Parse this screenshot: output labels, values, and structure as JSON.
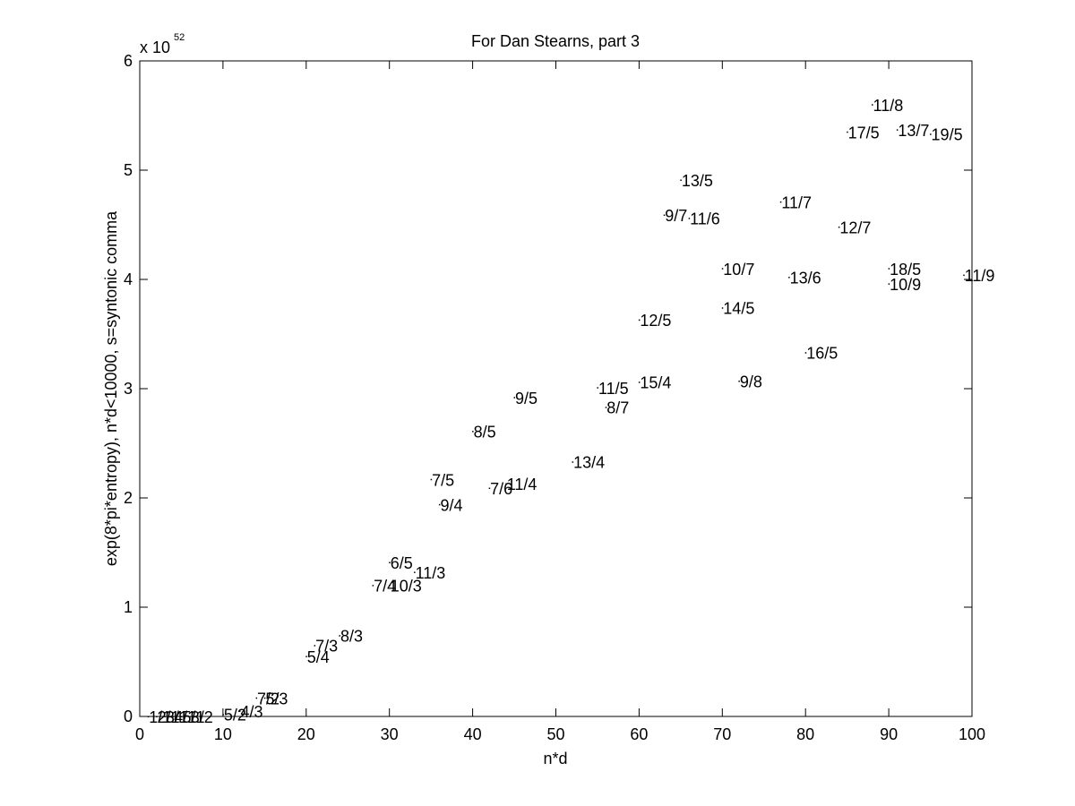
{
  "chart_data": {
    "type": "scatter",
    "title": "For Dan Stearns, part 3",
    "xlabel": "n*d",
    "ylabel": "exp(8*pi*entropy), n*d<10000, s=syntonic comma",
    "exponent_label": "x 10",
    "exponent_power": "52",
    "xlim": [
      0,
      100
    ],
    "ylim": [
      0,
      6
    ],
    "xticks": [
      0,
      10,
      20,
      30,
      40,
      50,
      60,
      70,
      80,
      90,
      100
    ],
    "yticks": [
      0,
      1,
      2,
      3,
      4,
      5,
      6
    ],
    "grid": false,
    "marker": "text-labels",
    "points": [
      {
        "label": "1/1",
        "x": 1,
        "y": 0
      },
      {
        "label": "2/1",
        "x": 2,
        "y": 0
      },
      {
        "label": "3/1",
        "x": 3,
        "y": 0
      },
      {
        "label": "4/1",
        "x": 4,
        "y": 0
      },
      {
        "label": "5/1",
        "x": 5,
        "y": 0
      },
      {
        "label": "3/2",
        "x": 6,
        "y": 0
      },
      {
        "label": "5/2",
        "x": 10,
        "y": 0.02
      },
      {
        "label": "4/3",
        "x": 12,
        "y": 0.05
      },
      {
        "label": "7/2",
        "x": 14,
        "y": 0.17
      },
      {
        "label": "5/3",
        "x": 15,
        "y": 0.17
      },
      {
        "label": "5/4",
        "x": 20,
        "y": 0.55
      },
      {
        "label": "7/3",
        "x": 21,
        "y": 0.65
      },
      {
        "label": "8/3",
        "x": 24,
        "y": 0.74
      },
      {
        "label": "7/4",
        "x": 28,
        "y": 1.2
      },
      {
        "label": "10/3",
        "x": 30,
        "y": 1.2
      },
      {
        "label": "6/5",
        "x": 30,
        "y": 1.41
      },
      {
        "label": "11/3",
        "x": 33,
        "y": 1.32
      },
      {
        "label": "7/5",
        "x": 35,
        "y": 2.17
      },
      {
        "label": "9/4",
        "x": 36,
        "y": 1.94
      },
      {
        "label": "8/5",
        "x": 40,
        "y": 2.61
      },
      {
        "label": "7/6",
        "x": 42,
        "y": 2.09
      },
      {
        "label": "11/4",
        "x": 44,
        "y": 2.13
      },
      {
        "label": "9/5",
        "x": 45,
        "y": 2.92
      },
      {
        "label": "13/4",
        "x": 52,
        "y": 2.33
      },
      {
        "label": "11/5",
        "x": 55,
        "y": 3.01
      },
      {
        "label": "8/7",
        "x": 56,
        "y": 2.83
      },
      {
        "label": "15/4",
        "x": 60,
        "y": 3.06
      },
      {
        "label": "12/5",
        "x": 60,
        "y": 3.63
      },
      {
        "label": "9/7",
        "x": 63,
        "y": 4.59
      },
      {
        "label": "13/5",
        "x": 65,
        "y": 4.91
      },
      {
        "label": "11/6",
        "x": 66,
        "y": 4.56
      },
      {
        "label": "10/7",
        "x": 70,
        "y": 4.1
      },
      {
        "label": "14/5",
        "x": 70,
        "y": 3.74
      },
      {
        "label": "9/8",
        "x": 72,
        "y": 3.07
      },
      {
        "label": "11/7",
        "x": 77,
        "y": 4.71
      },
      {
        "label": "13/6",
        "x": 78,
        "y": 4.02
      },
      {
        "label": "16/5",
        "x": 80,
        "y": 3.33
      },
      {
        "label": "12/7",
        "x": 84,
        "y": 4.48
      },
      {
        "label": "17/5",
        "x": 85,
        "y": 5.35
      },
      {
        "label": "11/8",
        "x": 88,
        "y": 5.6
      },
      {
        "label": "10/9",
        "x": 90,
        "y": 3.96
      },
      {
        "label": "18/5",
        "x": 90,
        "y": 4.1
      },
      {
        "label": "13/7",
        "x": 91,
        "y": 5.37
      },
      {
        "label": "19/5",
        "x": 95,
        "y": 5.33
      },
      {
        "label": "11/9",
        "x": 99,
        "y": 4.04
      }
    ]
  }
}
